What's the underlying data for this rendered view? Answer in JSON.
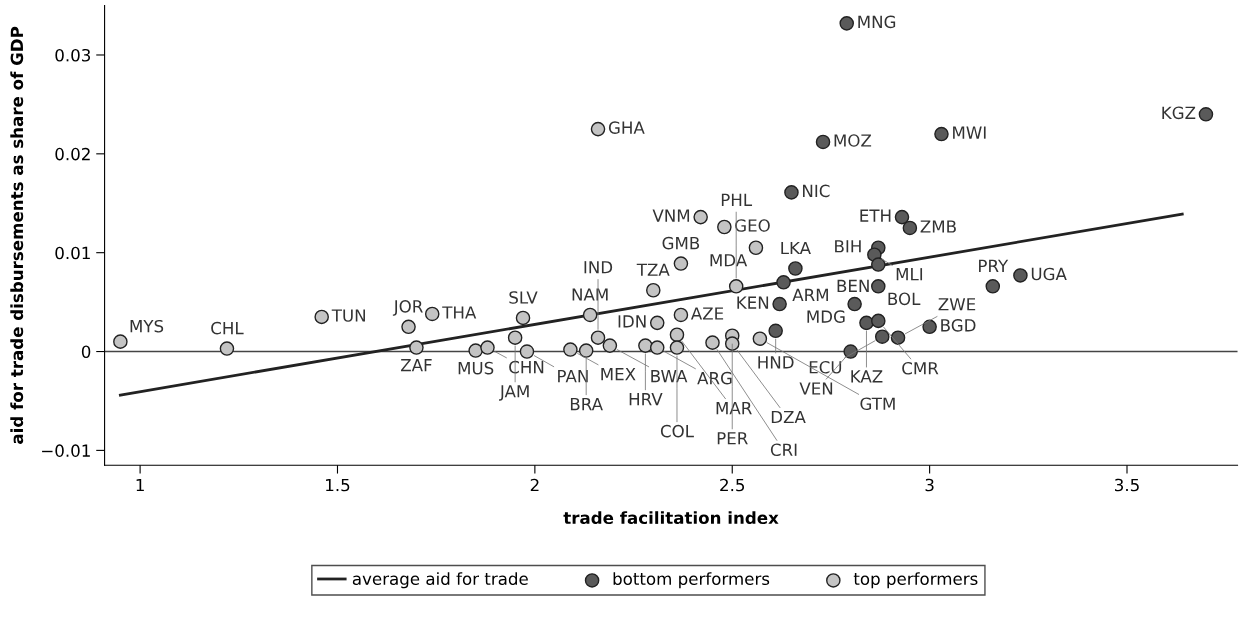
{
  "chart_data": {
    "type": "scatter",
    "xlabel": "trade facilitation index",
    "ylabel": "aid for trade disbursements as share of GDP",
    "xlim": [
      0.91,
      3.78
    ],
    "xticks": [
      1,
      1.5,
      2,
      2.5,
      3,
      3.5
    ],
    "ylim": [
      -0.0115,
      0.035
    ],
    "yticks": [
      {
        "value": -0.01,
        "label": "−0.01"
      },
      {
        "value": 0,
        "label": "0"
      },
      {
        "value": 0.01,
        "label": "0.01"
      },
      {
        "value": 0.02,
        "label": "0.02"
      },
      {
        "value": 0.03,
        "label": "0.03"
      }
    ],
    "grid": false,
    "legend": "bottom",
    "marker": "circle",
    "ref_lines": [
      {
        "axis": "y",
        "value": 0,
        "color": "#444444"
      }
    ],
    "series": [
      {
        "name": "average aid for trade",
        "type": "line",
        "color": "#222222",
        "line_style": "solid",
        "marker": "none",
        "x": [
          0.95,
          3.64
        ],
        "values": [
          -0.0044,
          0.0139
        ]
      },
      {
        "name": "bottom performers",
        "type": "scatter",
        "color": "#5a5a5a",
        "x": [
          2.79,
          2.73,
          3.03,
          3.7,
          2.65,
          2.93,
          2.95,
          2.87,
          2.86,
          2.87,
          2.87,
          2.66,
          2.63,
          2.62,
          2.81,
          2.84,
          2.87,
          3.0,
          2.88,
          2.92,
          2.8,
          3.16,
          3.23,
          2.61
        ],
        "values": [
          0.0332,
          0.0212,
          0.022,
          0.024,
          0.0161,
          0.0136,
          0.0125,
          0.0105,
          0.0098,
          0.0088,
          0.0066,
          0.0084,
          0.007,
          0.0048,
          0.0048,
          0.0029,
          0.0031,
          0.0025,
          0.0015,
          0.0014,
          0.0,
          0.0066,
          0.0077,
          0.0021
        ]
      },
      {
        "name": "top performers",
        "type": "scatter",
        "color": "#c4c4c4",
        "x": [
          0.95,
          1.22,
          1.46,
          1.74,
          1.68,
          1.7,
          1.97,
          2.14,
          2.3,
          2.37,
          2.31,
          2.16,
          2.42,
          2.48,
          2.56,
          2.37,
          2.51,
          1.85,
          1.88,
          1.95,
          1.98,
          2.09,
          2.13,
          2.16,
          2.19,
          2.28,
          2.31,
          2.36,
          2.36,
          2.5,
          2.5,
          2.57,
          2.45
        ],
        "values": [
          0.001,
          0.0003,
          0.0035,
          0.0038,
          0.0025,
          0.0004,
          0.0034,
          0.0037,
          0.0062,
          0.0037,
          0.0029,
          0.0225,
          0.0136,
          0.0126,
          0.0105,
          0.0089,
          0.0066,
          0.0001,
          0.0004,
          0.0014,
          0.0,
          0.0002,
          0.0001,
          0.0014,
          0.0006,
          0.0006,
          0.0004,
          0.0017,
          0.0004,
          0.0016,
          0.0008,
          0.0013,
          0.0009
        ]
      }
    ],
    "annotations": [
      {
        "text": "MNG",
        "x": 2.79,
        "y": 0.0332
      },
      {
        "text": "MOZ",
        "x": 2.73,
        "y": 0.0212
      },
      {
        "text": "MWI",
        "x": 3.03,
        "y": 0.022
      },
      {
        "text": "KGZ",
        "x": 3.7,
        "y": 0.024
      },
      {
        "text": "NIC",
        "x": 2.65,
        "y": 0.0161
      },
      {
        "text": "ETH",
        "x": 2.93,
        "y": 0.0136
      },
      {
        "text": "ZMB",
        "x": 2.95,
        "y": 0.0125
      },
      {
        "text": "BIH",
        "x": 2.87,
        "y": 0.0105
      },
      {
        "text": "MLI",
        "x": 2.86,
        "y": 0.0098
      },
      {
        "text": "BEN",
        "x": 2.87,
        "y": 0.0088
      },
      {
        "text": "BOL",
        "x": 2.87,
        "y": 0.0066
      },
      {
        "text": "LKA",
        "x": 2.66,
        "y": 0.0084
      },
      {
        "text": "ARM",
        "x": 2.63,
        "y": 0.007
      },
      {
        "text": "KEN",
        "x": 2.62,
        "y": 0.0048
      },
      {
        "text": "MDG",
        "x": 2.81,
        "y": 0.0048
      },
      {
        "text": "KAZ",
        "x": 2.84,
        "y": 0.0029
      },
      {
        "text": "CMR",
        "x": 2.87,
        "y": 0.0031
      },
      {
        "text": "BGD",
        "x": 3.0,
        "y": 0.0025
      },
      {
        "text": "ECU",
        "x": 2.88,
        "y": 0.0015
      },
      {
        "text": "ZWE",
        "x": 2.92,
        "y": 0.0014
      },
      {
        "text": "VEN",
        "x": 2.8,
        "y": 0.0
      },
      {
        "text": "PRY",
        "x": 3.16,
        "y": 0.0066
      },
      {
        "text": "UGA",
        "x": 3.23,
        "y": 0.0077
      },
      {
        "text": "HND",
        "x": 2.61,
        "y": 0.0021
      },
      {
        "text": "MYS",
        "x": 0.95,
        "y": 0.001
      },
      {
        "text": "CHL",
        "x": 1.22,
        "y": 0.0003
      },
      {
        "text": "TUN",
        "x": 1.46,
        "y": 0.0035
      },
      {
        "text": "THA",
        "x": 1.74,
        "y": 0.0038
      },
      {
        "text": "JOR",
        "x": 1.68,
        "y": 0.0025
      },
      {
        "text": "ZAF",
        "x": 1.7,
        "y": 0.0004
      },
      {
        "text": "SLV",
        "x": 1.97,
        "y": 0.0034
      },
      {
        "text": "NAM",
        "x": 2.14,
        "y": 0.0037
      },
      {
        "text": "TZA",
        "x": 2.3,
        "y": 0.0062
      },
      {
        "text": "AZE",
        "x": 2.37,
        "y": 0.0037
      },
      {
        "text": "IDN",
        "x": 2.31,
        "y": 0.0029
      },
      {
        "text": "GHA",
        "x": 2.16,
        "y": 0.0225
      },
      {
        "text": "VNM",
        "x": 2.42,
        "y": 0.0136
      },
      {
        "text": "GEO",
        "x": 2.48,
        "y": 0.0126
      },
      {
        "text": "MDA",
        "x": 2.56,
        "y": 0.0105
      },
      {
        "text": "GMB",
        "x": 2.37,
        "y": 0.0089
      },
      {
        "text": "PHL",
        "x": 2.51,
        "y": 0.0066
      },
      {
        "text": "MUS",
        "x": 1.85,
        "y": 0.0001
      },
      {
        "text": "CHN",
        "x": 1.88,
        "y": 0.0004
      },
      {
        "text": "JAM",
        "x": 1.95,
        "y": 0.0014
      },
      {
        "text": "PAN",
        "x": 1.98,
        "y": 0.0
      },
      {
        "text": "MEX",
        "x": 2.09,
        "y": 0.0002
      },
      {
        "text": "BRA",
        "x": 2.13,
        "y": 0.0001
      },
      {
        "text": "IND",
        "x": 2.16,
        "y": 0.0014
      },
      {
        "text": "BWA",
        "x": 2.19,
        "y": 0.0006
      },
      {
        "text": "HRV",
        "x": 2.28,
        "y": 0.0006
      },
      {
        "text": "ARG",
        "x": 2.31,
        "y": 0.0004
      },
      {
        "text": "MAR",
        "x": 2.36,
        "y": 0.0017
      },
      {
        "text": "COL",
        "x": 2.36,
        "y": 0.0004
      },
      {
        "text": "PER",
        "x": 2.5,
        "y": 0.0016
      },
      {
        "text": "DZA",
        "x": 2.5,
        "y": 0.0008
      },
      {
        "text": "GTM",
        "x": 2.57,
        "y": 0.0013
      },
      {
        "text": "CRI",
        "x": 2.45,
        "y": 0.0009
      }
    ]
  }
}
